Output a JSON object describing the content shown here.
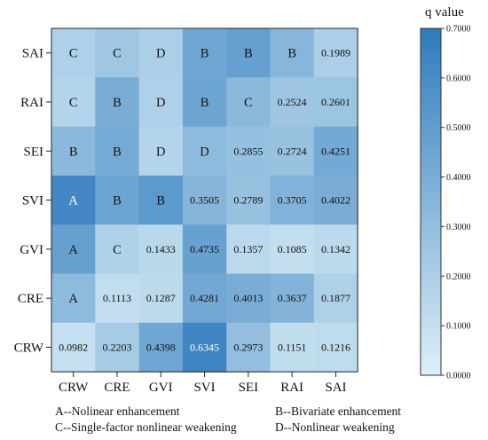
{
  "chart_data": {
    "type": "heatmap",
    "x_categories": [
      "CRW",
      "CRE",
      "GVI",
      "SVI",
      "SEI",
      "RAI",
      "SAI"
    ],
    "y_categories": [
      "SAI",
      "RAI",
      "SEI",
      "SVI",
      "GVI",
      "CRE",
      "CRW"
    ],
    "cells": [
      [
        {
          "label": "C"
        },
        {
          "label": "C"
        },
        {
          "label": "D"
        },
        {
          "label": "B"
        },
        {
          "label": "B"
        },
        {
          "label": "B"
        },
        {
          "label": "0.1989",
          "value": 0.1989
        }
      ],
      [
        {
          "label": "C"
        },
        {
          "label": "B"
        },
        {
          "label": "D"
        },
        {
          "label": "B"
        },
        {
          "label": "C"
        },
        {
          "label": "0.2524",
          "value": 0.2524
        },
        {
          "label": "0.2601",
          "value": 0.2601
        }
      ],
      [
        {
          "label": "B"
        },
        {
          "label": "B"
        },
        {
          "label": "D"
        },
        {
          "label": "D"
        },
        {
          "label": "0.2855",
          "value": 0.2855
        },
        {
          "label": "0.2724",
          "value": 0.2724
        },
        {
          "label": "0.4251",
          "value": 0.4251
        }
      ],
      [
        {
          "label": "A"
        },
        {
          "label": "B"
        },
        {
          "label": "B"
        },
        {
          "label": "0.3505",
          "value": 0.3505
        },
        {
          "label": "0.2789",
          "value": 0.2789
        },
        {
          "label": "0.3705",
          "value": 0.3705
        },
        {
          "label": "0.4022",
          "value": 0.4022
        }
      ],
      [
        {
          "label": "A"
        },
        {
          "label": "C"
        },
        {
          "label": "0.1433",
          "value": 0.1433
        },
        {
          "label": "0.4735",
          "value": 0.4735
        },
        {
          "label": "0.1357",
          "value": 0.1357
        },
        {
          "label": "0.1085",
          "value": 0.1085
        },
        {
          "label": "0.1342",
          "value": 0.1342
        }
      ],
      [
        {
          "label": "A"
        },
        {
          "label": "0.1113",
          "value": 0.1113
        },
        {
          "label": "0.1287",
          "value": 0.1287
        },
        {
          "label": "0.4281",
          "value": 0.4281
        },
        {
          "label": "0.4013",
          "value": 0.4013
        },
        {
          "label": "0.3637",
          "value": 0.3637
        },
        {
          "label": "0.1877",
          "value": 0.1877
        }
      ],
      [
        {
          "label": "0.0982",
          "value": 0.0982
        },
        {
          "label": "0.2203",
          "value": 0.2203
        },
        {
          "label": "0.4398",
          "value": 0.4398
        },
        {
          "label": "0.6345",
          "value": 0.6345
        },
        {
          "label": "0.2973",
          "value": 0.2973
        },
        {
          "label": "0.1151",
          "value": 0.1151
        },
        {
          "label": "0.1216",
          "value": 0.1216
        }
      ]
    ],
    "letter_cell_values": [
      [
        0.19,
        0.25,
        0.2,
        0.44,
        0.48,
        0.35,
        0.1989
      ],
      [
        0.17,
        0.4,
        0.19,
        0.45,
        0.33,
        0.2524,
        0.2601
      ],
      [
        0.33,
        0.42,
        0.17,
        0.32,
        0.2855,
        0.2724,
        0.4251
      ],
      [
        0.62,
        0.45,
        0.52,
        0.3505,
        0.2789,
        0.3705,
        0.4022
      ],
      [
        0.48,
        0.18,
        0.1433,
        0.4735,
        0.1357,
        0.1085,
        0.1342
      ],
      [
        0.32,
        0.1113,
        0.1287,
        0.4281,
        0.4013,
        0.3637,
        0.1877
      ]
    ],
    "colorbar": {
      "title": "q value",
      "min": 0,
      "max": 0.7,
      "ticks": [
        "0.0000",
        "0.1000",
        "0.2000",
        "0.3000",
        "0.4000",
        "0.5000",
        "0.6000",
        "0.7000"
      ],
      "color_low": "#ddf0f8",
      "color_high": "#2f7bbd"
    },
    "legend_keys": [
      "A--Nolinear enhancement",
      "B--Bivariate enhancement",
      "C--Single-factor nonlinear weakening",
      "D--Nonlinear weakening"
    ],
    "grid": false
  }
}
